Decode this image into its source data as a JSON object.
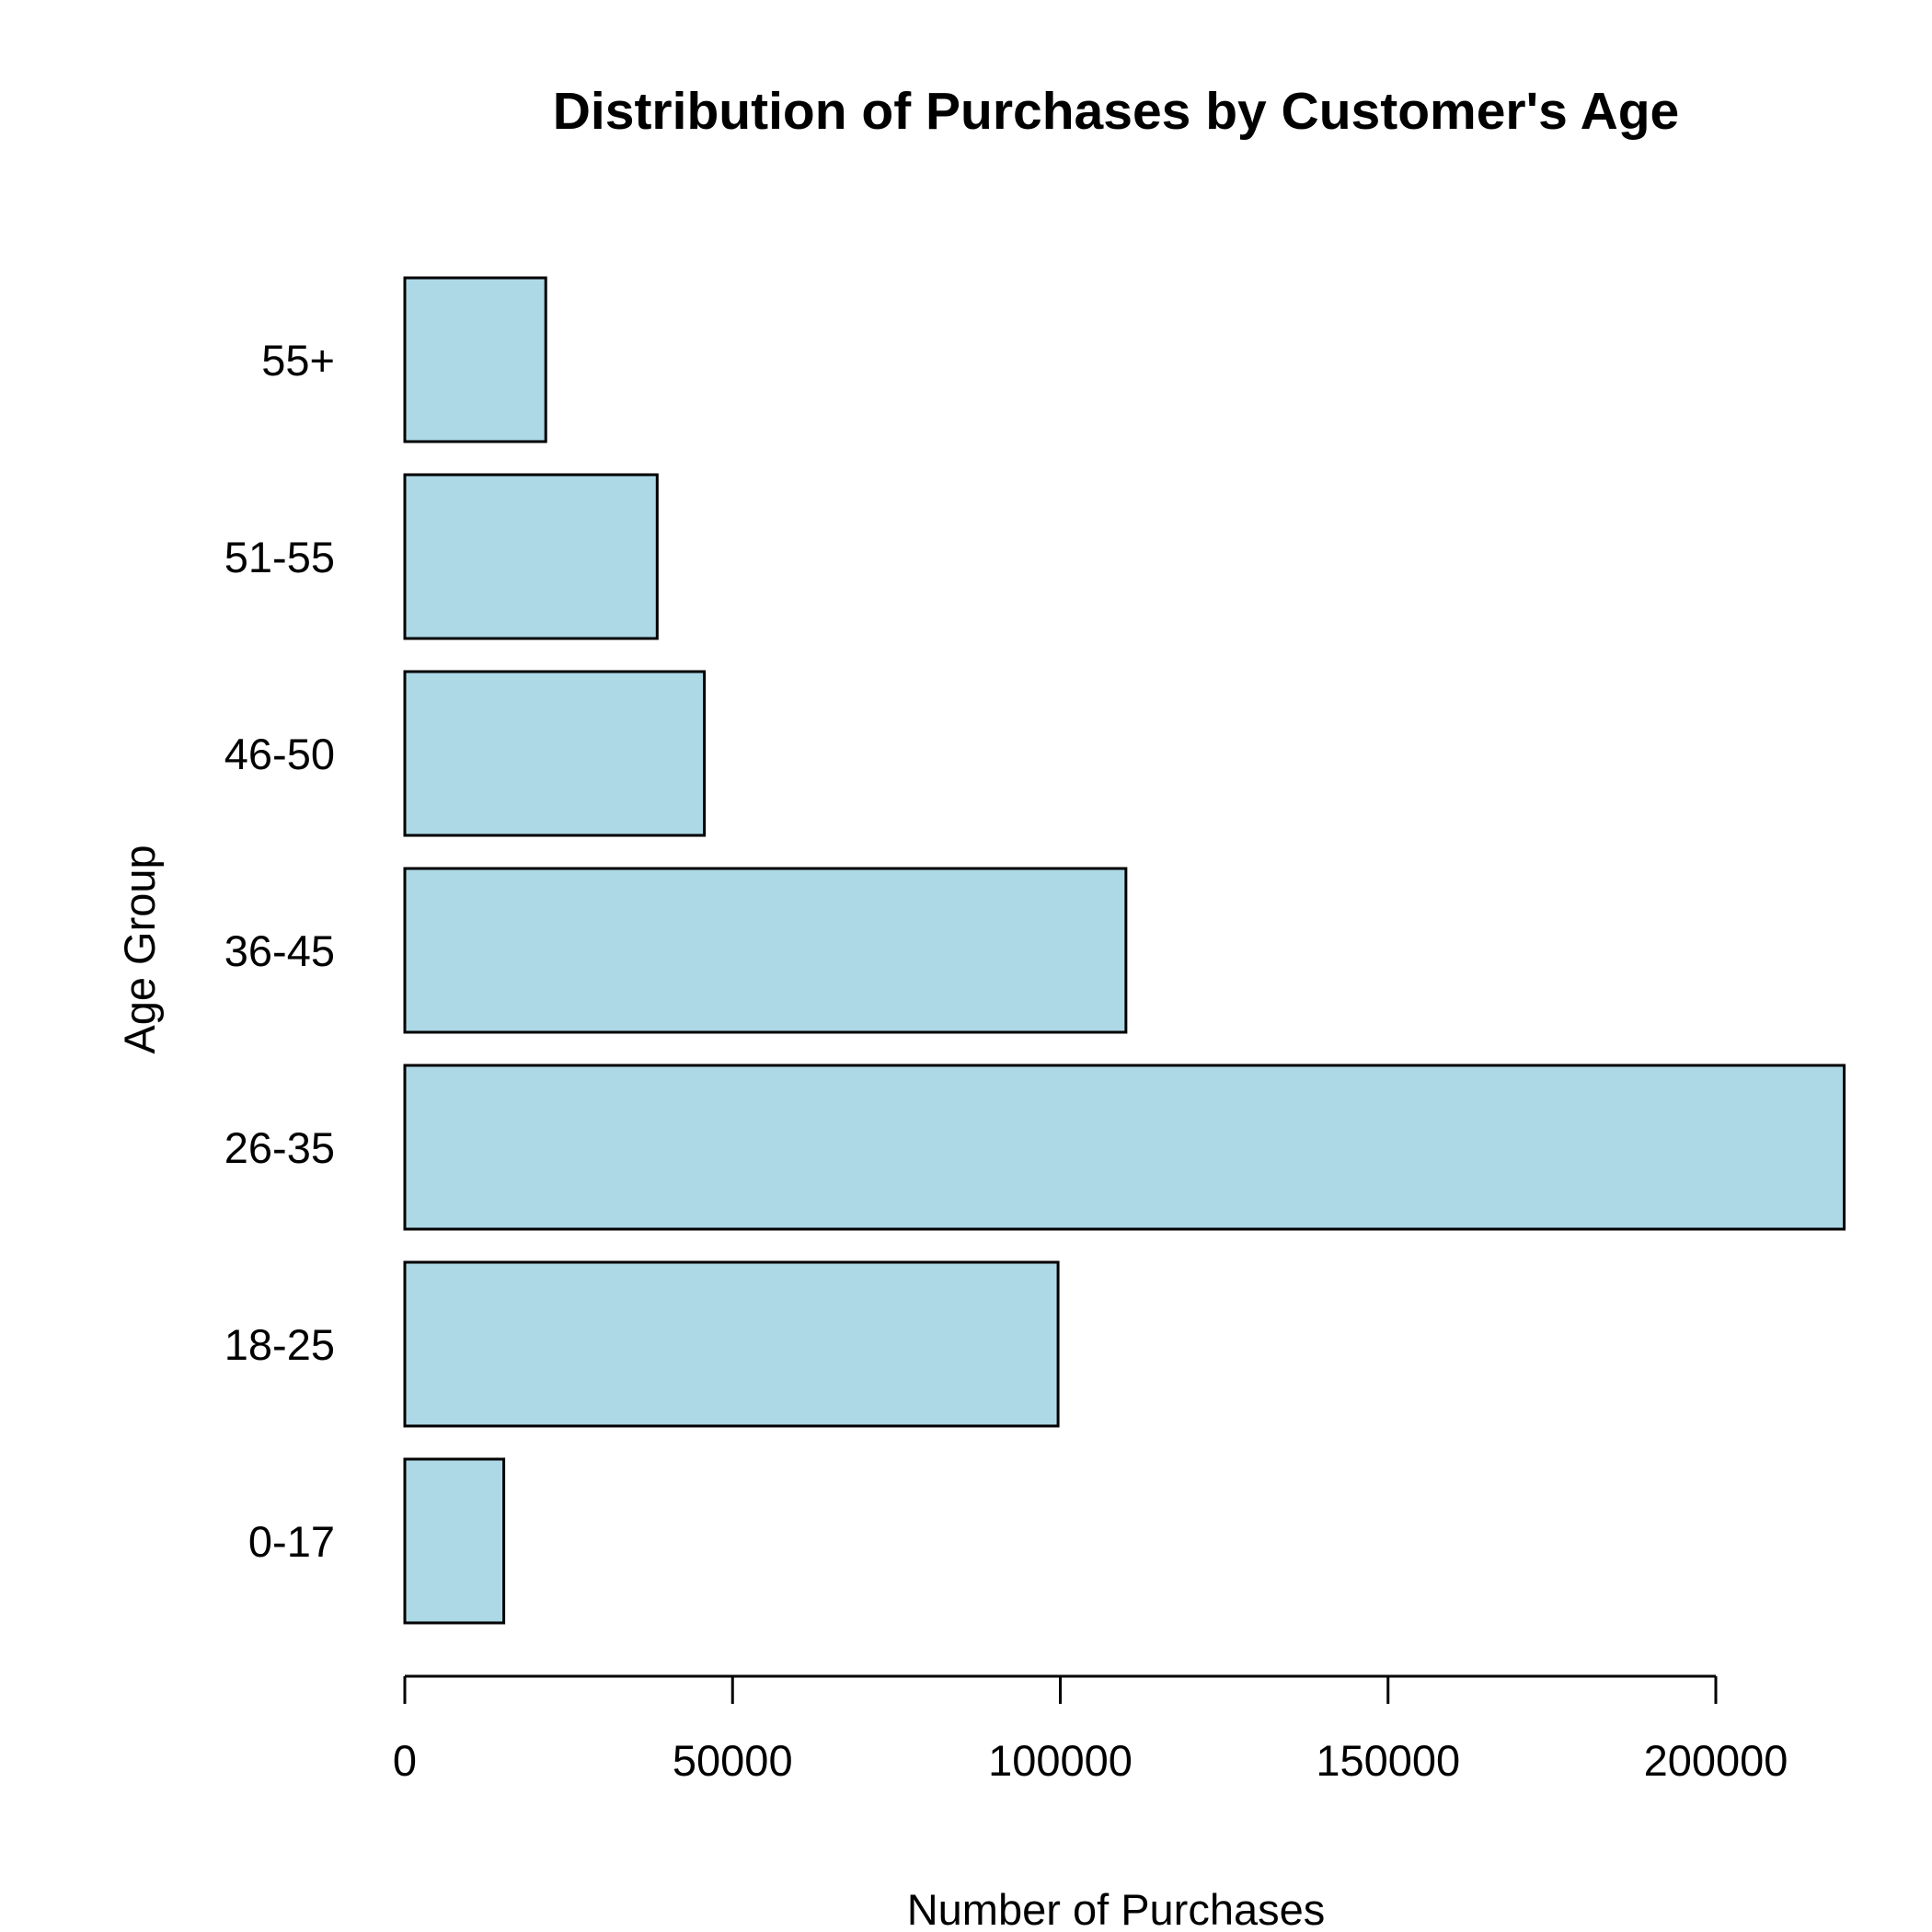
{
  "chart_data": {
    "type": "bar",
    "orientation": "horizontal",
    "title": "Distribution of Purchases by Customer's Age",
    "xlabel": "Number of Purchases",
    "ylabel": "Age Group",
    "categories": [
      "0-17",
      "18-25",
      "26-35",
      "36-45",
      "46-50",
      "51-55",
      "55+"
    ],
    "values": [
      15102,
      99660,
      219587,
      110013,
      45701,
      38501,
      21504
    ],
    "xlim": [
      0,
      200000
    ],
    "xticks": [
      0,
      50000,
      100000,
      150000,
      200000
    ],
    "xtick_labels": [
      "0",
      "50000",
      "100000",
      "150000",
      "200000"
    ],
    "grid": false,
    "legend": "none",
    "bar_color": "#ADD8E6"
  }
}
